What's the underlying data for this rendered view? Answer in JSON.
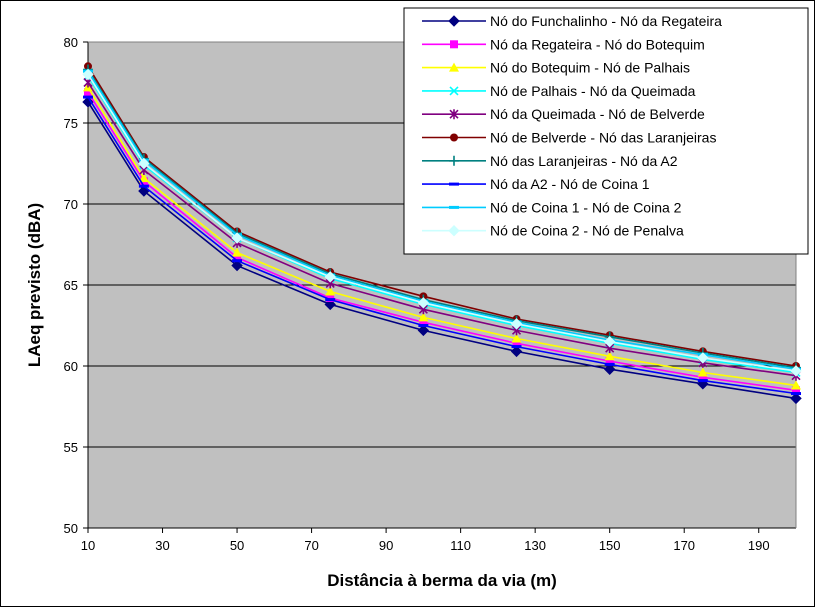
{
  "chart_data": {
    "type": "line",
    "title": "",
    "xlabel": "Distância à berma da via (m)",
    "ylabel": "LAeq previsto (dBA)",
    "xlim": [
      10,
      200
    ],
    "ylim": [
      50,
      80
    ],
    "x_ticks": [
      "10",
      "30",
      "50",
      "70",
      "90",
      "110",
      "130",
      "150",
      "170",
      "190"
    ],
    "y_ticks": [
      "50",
      "55",
      "60",
      "65",
      "70",
      "75",
      "80"
    ],
    "grid": "horizontal",
    "legend_position": "top-right",
    "plot_background": "#c0c0c0",
    "x": [
      10,
      25,
      50,
      75,
      100,
      125,
      150,
      175,
      200
    ],
    "series": [
      {
        "name": "Nó do Funchalinho - Nó da Regateira",
        "color": "#000080",
        "marker": "diamond",
        "values": [
          76.3,
          70.8,
          66.2,
          63.8,
          62.2,
          60.9,
          59.8,
          58.9,
          58.0
        ]
      },
      {
        "name": "Nó da Regateira - Nó do Botequim",
        "color": "#ff00ff",
        "marker": "square",
        "values": [
          76.9,
          71.4,
          66.7,
          64.2,
          62.7,
          61.4,
          60.3,
          59.3,
          58.5
        ]
      },
      {
        "name": "Nó do Botequim - Nó de Palhais",
        "color": "#ffff00",
        "marker": "triangle",
        "values": [
          77.2,
          71.6,
          67.0,
          64.6,
          63.0,
          61.7,
          60.6,
          59.6,
          58.8
        ]
      },
      {
        "name": "Nó de Palhais - Nó da Queimada",
        "color": "#00ffff",
        "marker": "x",
        "values": [
          77.9,
          72.4,
          67.9,
          65.4,
          63.8,
          62.5,
          61.4,
          60.4,
          59.6
        ]
      },
      {
        "name": "Nó da Queimada - Nó de Belverde",
        "color": "#800080",
        "marker": "star",
        "values": [
          77.5,
          72.1,
          67.6,
          65.1,
          63.5,
          62.2,
          61.1,
          60.2,
          59.4
        ]
      },
      {
        "name": "Nó de Belverde - Nó das Laranjeiras",
        "color": "#800000",
        "marker": "circle",
        "values": [
          78.5,
          72.9,
          68.3,
          65.8,
          64.3,
          62.9,
          61.9,
          60.9,
          60.0
        ]
      },
      {
        "name": "Nó das Laranjeiras - Nó da A2",
        "color": "#008080",
        "marker": "plus",
        "values": [
          78.3,
          72.8,
          68.2,
          65.7,
          64.1,
          62.8,
          61.8,
          60.8,
          59.9
        ]
      },
      {
        "name": "Nó da A2 - Nó de Coina 1",
        "color": "#0000ff",
        "marker": "dash",
        "values": [
          76.6,
          71.1,
          66.5,
          64.1,
          62.5,
          61.2,
          60.1,
          59.1,
          58.3
        ]
      },
      {
        "name": "Nó de Coina 1 - Nó de Coina 2",
        "color": "#00ccff",
        "marker": "dash",
        "values": [
          78.2,
          72.7,
          68.1,
          65.6,
          64.0,
          62.7,
          61.6,
          60.7,
          59.8
        ]
      },
      {
        "name": "Nó de Coina 2 - Nó de Penalva",
        "color": "#ccffff",
        "marker": "diamond",
        "values": [
          78.0,
          72.5,
          67.9,
          65.5,
          63.9,
          62.6,
          61.5,
          60.5,
          59.7
        ]
      }
    ]
  }
}
